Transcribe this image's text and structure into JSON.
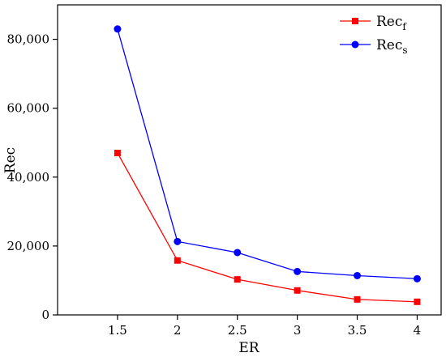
{
  "chart_data": {
    "type": "line",
    "x": [
      1.5,
      2,
      2.5,
      3,
      3.5,
      4
    ],
    "x_tick_labels": [
      "1.5",
      "2",
      "2.5",
      "3",
      "3.5",
      "4"
    ],
    "y_tick_values": [
      0,
      20000,
      40000,
      60000,
      80000
    ],
    "y_tick_labels": [
      "0",
      "20,000",
      "40,000",
      "60,000",
      "80,000"
    ],
    "xlabel": "ER",
    "ylabel": "Rec",
    "xlim": [
      1.0,
      4.2
    ],
    "ylim": [
      0,
      90000
    ],
    "grid": false,
    "legend_position": "top-right",
    "series": [
      {
        "name": "Rec",
        "name_subscript": "f",
        "color": "#ff0000",
        "marker": "square",
        "values": [
          47000,
          15800,
          10300,
          7100,
          4500,
          3800
        ]
      },
      {
        "name": "Rec",
        "name_subscript": "s",
        "color": "#0000ff",
        "marker": "circle",
        "values": [
          83000,
          21300,
          18100,
          12600,
          11400,
          10500
        ]
      }
    ]
  }
}
